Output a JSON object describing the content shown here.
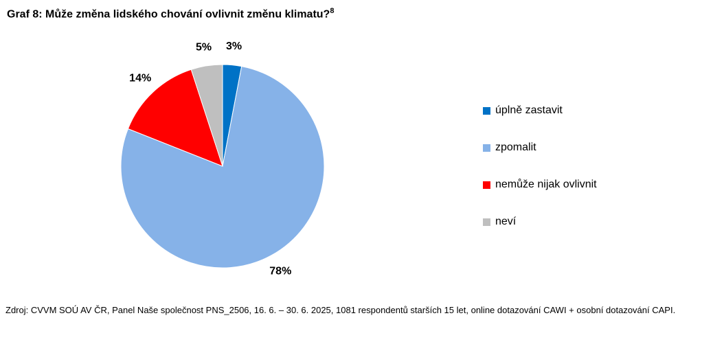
{
  "title": {
    "text": "Graf 8: Může změna lidského chování ovlivnit změnu klimatu?",
    "superscript": "8"
  },
  "chart_data": {
    "type": "pie",
    "start_angle_deg": 0,
    "direction": "clockwise",
    "legend_position": "right",
    "slices": [
      {
        "label": "úplně zastavit",
        "value": 3,
        "pct_label": "3%",
        "color": "#0072C6"
      },
      {
        "label": "zpomalit",
        "value": 78,
        "pct_label": "78%",
        "color": "#86B2E8"
      },
      {
        "label": "nemůže nijak ovlivnit",
        "value": 14,
        "pct_label": "14%",
        "color": "#FF0000"
      },
      {
        "label": "neví",
        "value": 5,
        "pct_label": "5%",
        "color": "#BFBFBF"
      }
    ]
  },
  "source": {
    "text": "Zdroj: CVVM SOÚ AV ČR, Panel Naše společnost PNS_2506, 16. 6. – 30. 6. 2025, 1081 respondentů starších 15 let, online dotazování CAWI + osobní dotazování CAPI."
  }
}
